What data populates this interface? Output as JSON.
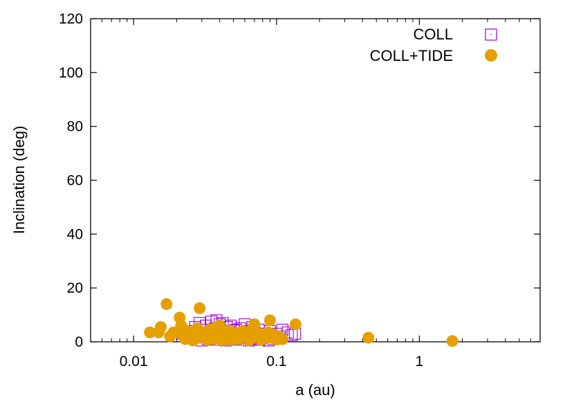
{
  "chart_data": {
    "type": "scatter",
    "title": "",
    "xlabel": "a (au)",
    "ylabel": "Inclination (deg)",
    "x_scale": "log",
    "xlim": [
      0.005,
      7
    ],
    "ylim": [
      0,
      120
    ],
    "x_ticks": [
      {
        "value": 0.01,
        "label": "0.01"
      },
      {
        "value": 0.1,
        "label": "0.1"
      },
      {
        "value": 1,
        "label": "1"
      }
    ],
    "y_ticks": [
      {
        "value": 0,
        "label": "0"
      },
      {
        "value": 20,
        "label": "20"
      },
      {
        "value": 40,
        "label": "40"
      },
      {
        "value": 60,
        "label": "60"
      },
      {
        "value": 80,
        "label": "80"
      },
      {
        "value": 100,
        "label": "100"
      },
      {
        "value": 120,
        "label": "120"
      }
    ],
    "grid": false,
    "legend_position": "top-right",
    "series": [
      {
        "name": "COLL",
        "marker": "open-square",
        "color": "#9400d3",
        "points": [
          [
            0.022,
            3.0
          ],
          [
            0.024,
            2.0
          ],
          [
            0.025,
            4.0
          ],
          [
            0.026,
            1.5
          ],
          [
            0.027,
            5.5
          ],
          [
            0.028,
            3.0
          ],
          [
            0.029,
            7.0
          ],
          [
            0.03,
            2.0
          ],
          [
            0.031,
            4.5
          ],
          [
            0.032,
            6.0
          ],
          [
            0.033,
            1.0
          ],
          [
            0.034,
            3.5
          ],
          [
            0.035,
            7.5
          ],
          [
            0.036,
            2.5
          ],
          [
            0.037,
            5.0
          ],
          [
            0.038,
            8.0
          ],
          [
            0.039,
            1.5
          ],
          [
            0.04,
            6.5
          ],
          [
            0.041,
            3.0
          ],
          [
            0.042,
            7.0
          ],
          [
            0.043,
            4.0
          ],
          [
            0.044,
            2.0
          ],
          [
            0.045,
            5.5
          ],
          [
            0.046,
            1.0
          ],
          [
            0.047,
            3.5
          ],
          [
            0.048,
            6.0
          ],
          [
            0.05,
            2.5
          ],
          [
            0.052,
            4.5
          ],
          [
            0.054,
            1.5
          ],
          [
            0.056,
            5.0
          ],
          [
            0.058,
            3.0
          ],
          [
            0.06,
            6.5
          ],
          [
            0.062,
            2.0
          ],
          [
            0.064,
            4.0
          ],
          [
            0.066,
            1.0
          ],
          [
            0.068,
            5.5
          ],
          [
            0.07,
            3.5
          ],
          [
            0.072,
            2.5
          ],
          [
            0.075,
            4.5
          ],
          [
            0.078,
            1.5
          ],
          [
            0.08,
            3.0
          ],
          [
            0.085,
            2.0
          ],
          [
            0.09,
            4.0
          ],
          [
            0.095,
            1.0
          ],
          [
            0.1,
            3.0
          ],
          [
            0.105,
            2.0
          ],
          [
            0.11,
            4.5
          ],
          [
            0.12,
            3.5
          ],
          [
            0.128,
            2.5
          ],
          [
            0.135,
            3.0
          ],
          [
            0.03,
            0.5
          ],
          [
            0.036,
            0.8
          ],
          [
            0.044,
            0.5
          ],
          [
            0.052,
            0.8
          ],
          [
            0.064,
            0.5
          ],
          [
            0.076,
            0.8
          ],
          [
            0.088,
            0.5
          ],
          [
            0.04,
            3.8
          ],
          [
            0.05,
            4.2
          ],
          [
            0.058,
            2.2
          ]
        ]
      },
      {
        "name": "COLL+TIDE",
        "marker": "filled-circle",
        "color": "#e69f00",
        "points": [
          [
            0.013,
            3.5
          ],
          [
            0.015,
            3.5
          ],
          [
            0.0155,
            5.5
          ],
          [
            0.017,
            14.0
          ],
          [
            0.018,
            2.0
          ],
          [
            0.019,
            3.5
          ],
          [
            0.021,
            9.0
          ],
          [
            0.0215,
            6.0
          ],
          [
            0.022,
            2.5
          ],
          [
            0.023,
            1.0
          ],
          [
            0.024,
            4.0
          ],
          [
            0.025,
            2.0
          ],
          [
            0.026,
            0.5
          ],
          [
            0.027,
            3.0
          ],
          [
            0.028,
            5.0
          ],
          [
            0.029,
            12.5
          ],
          [
            0.03,
            1.5
          ],
          [
            0.031,
            3.5
          ],
          [
            0.032,
            2.0
          ],
          [
            0.033,
            0.8
          ],
          [
            0.034,
            4.5
          ],
          [
            0.035,
            2.5
          ],
          [
            0.036,
            1.0
          ],
          [
            0.037,
            3.0
          ],
          [
            0.038,
            5.5
          ],
          [
            0.039,
            1.8
          ],
          [
            0.04,
            6.0
          ],
          [
            0.041,
            2.5
          ],
          [
            0.042,
            0.5
          ],
          [
            0.043,
            3.8
          ],
          [
            0.044,
            1.5
          ],
          [
            0.045,
            2.8
          ],
          [
            0.047,
            4.2
          ],
          [
            0.048,
            0.8
          ],
          [
            0.05,
            2.0
          ],
          [
            0.052,
            3.2
          ],
          [
            0.054,
            1.0
          ],
          [
            0.056,
            2.5
          ],
          [
            0.058,
            4.0
          ],
          [
            0.06,
            1.5
          ],
          [
            0.062,
            3.0
          ],
          [
            0.064,
            0.5
          ],
          [
            0.066,
            2.2
          ],
          [
            0.068,
            5.0
          ],
          [
            0.07,
            6.5
          ],
          [
            0.072,
            1.8
          ],
          [
            0.075,
            3.0
          ],
          [
            0.078,
            0.8
          ],
          [
            0.08,
            2.5
          ],
          [
            0.083,
            1.2
          ],
          [
            0.087,
            3.5
          ],
          [
            0.09,
            8.0
          ],
          [
            0.092,
            1.5
          ],
          [
            0.095,
            2.8
          ],
          [
            0.1,
            0.8
          ],
          [
            0.105,
            2.0
          ],
          [
            0.11,
            1.0
          ],
          [
            0.136,
            6.5
          ],
          [
            0.44,
            1.5
          ],
          [
            1.7,
            0.3
          ]
        ]
      }
    ]
  }
}
